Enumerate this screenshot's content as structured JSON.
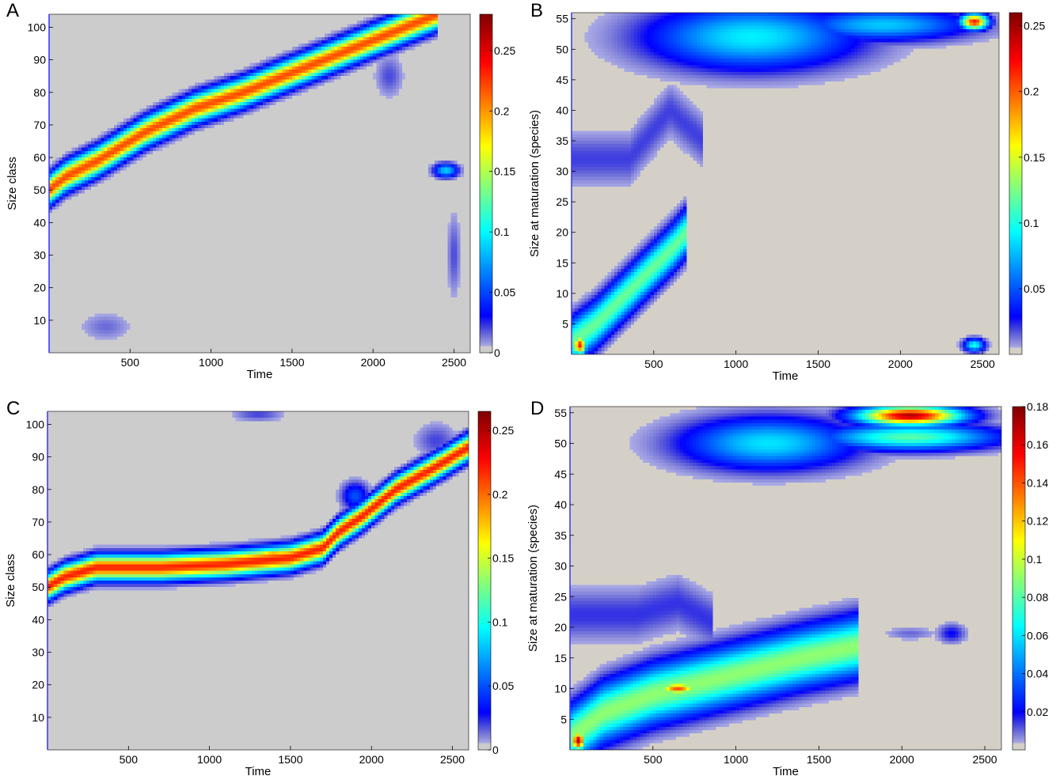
{
  "chart_data": [
    {
      "panel": "A",
      "type": "heatmap",
      "xlabel": "Time",
      "ylabel": "Size class",
      "xticks": [
        500,
        1000,
        1500,
        2000,
        2500
      ],
      "yticks": [
        10,
        20,
        30,
        40,
        50,
        60,
        70,
        80,
        90,
        100
      ],
      "xlim": [
        0,
        2600
      ],
      "ylim": [
        0,
        104
      ],
      "colorbar": {
        "ticks": [
          "0",
          "0.05",
          "0.1",
          "0.15",
          "0.2",
          "0.25"
        ],
        "max": 0.28
      },
      "background": "#cccccc",
      "ridges": [
        {
          "points": [
            [
              0,
              50
            ],
            [
              100,
              54
            ],
            [
              300,
              59
            ],
            [
              600,
              68
            ],
            [
              900,
              75
            ],
            [
              1200,
              80
            ],
            [
              1500,
              86
            ],
            [
              1800,
              92
            ],
            [
              2100,
              98
            ],
            [
              2300,
              102
            ],
            [
              2400,
              104
            ]
          ],
          "peak": 0.22,
          "spread": 4.0
        }
      ],
      "blobs": [
        {
          "x": 2450,
          "y": 56,
          "value": 0.09,
          "sx": 70,
          "sy": 2
        },
        {
          "x": 2500,
          "y": 30,
          "value": 0.02,
          "sx": 40,
          "sy": 12
        },
        {
          "x": 2100,
          "y": 85,
          "value": 0.02,
          "sx": 80,
          "sy": 6
        },
        {
          "x": 350,
          "y": 8,
          "value": 0.015,
          "sx": 150,
          "sy": 4
        }
      ]
    },
    {
      "panel": "B",
      "type": "heatmap",
      "xlabel": "Time",
      "ylabel": "Size at maturation (species)",
      "xticks": [
        500,
        1000,
        1500,
        2000,
        2500
      ],
      "yticks": [
        5,
        10,
        15,
        20,
        25,
        30,
        35,
        40,
        45,
        50,
        55
      ],
      "xlim": [
        0,
        2600
      ],
      "ylim": [
        0,
        56
      ],
      "colorbar": {
        "ticks": [
          "0.05",
          "0.1",
          "0.15",
          "0.2",
          "0.25"
        ],
        "max": 0.26
      },
      "background": "#d4d0c8",
      "ridges": [
        {
          "points": [
            [
              0,
              2
            ],
            [
              150,
              5
            ],
            [
              300,
              9
            ],
            [
              450,
              13
            ],
            [
              600,
              17
            ],
            [
              700,
              20
            ]
          ],
          "peak": 0.12,
          "spread": 3.5
        },
        {
          "points": [
            [
              350,
              32
            ],
            [
              600,
              40
            ],
            [
              800,
              35
            ]
          ],
          "peak": 0.02,
          "spread": 4.0
        }
      ],
      "blobs": [
        {
          "x": 50,
          "y": 1.5,
          "value": 0.22,
          "sx": 40,
          "sy": 1.5
        },
        {
          "x": 1100,
          "y": 52,
          "value": 0.09,
          "sx": 600,
          "sy": 5
        },
        {
          "x": 1900,
          "y": 54,
          "value": 0.08,
          "sx": 500,
          "sy": 2.5
        },
        {
          "x": 2450,
          "y": 54.5,
          "value": 0.22,
          "sx": 80,
          "sy": 1.2
        },
        {
          "x": 2450,
          "y": 1.5,
          "value": 0.1,
          "sx": 60,
          "sy": 1.0
        }
      ]
    },
    {
      "panel": "C",
      "type": "heatmap",
      "xlabel": "Time",
      "ylabel": "Size class",
      "xticks": [
        500,
        1000,
        1500,
        2000,
        2500
      ],
      "yticks": [
        10,
        20,
        30,
        40,
        50,
        60,
        70,
        80,
        90,
        100
      ],
      "xlim": [
        0,
        2600
      ],
      "ylim": [
        0,
        104
      ],
      "colorbar": {
        "ticks": [
          "0",
          "0.05",
          "0.1",
          "0.15",
          "0.2",
          "0.25"
        ],
        "max": 0.265
      },
      "background": "#cccccc",
      "ridges": [
        {
          "points": [
            [
              0,
              50
            ],
            [
              100,
              53
            ],
            [
              300,
              56
            ],
            [
              700,
              56
            ],
            [
              1100,
              57
            ],
            [
              1500,
              59
            ],
            [
              1700,
              62
            ],
            [
              1800,
              67
            ],
            [
              1950,
              72
            ],
            [
              2150,
              80
            ],
            [
              2400,
              87
            ],
            [
              2600,
              93
            ]
          ],
          "peak": 0.22,
          "spread": 3.5
        }
      ],
      "blobs": [
        {
          "x": 1400,
          "y": 60,
          "value": 0.2,
          "sx": 150,
          "sy": 1.5
        },
        {
          "x": 1900,
          "y": 78,
          "value": 0.05,
          "sx": 80,
          "sy": 4
        },
        {
          "x": 1300,
          "y": 103,
          "value": 0.02,
          "sx": 150,
          "sy": 2
        },
        {
          "x": 2400,
          "y": 95,
          "value": 0.02,
          "sx": 120,
          "sy": 5
        }
      ]
    },
    {
      "panel": "D",
      "type": "heatmap",
      "xlabel": "Time",
      "ylabel": "Size at maturation (species)",
      "xticks": [
        500,
        1000,
        1500,
        2000,
        2500
      ],
      "yticks": [
        5,
        10,
        15,
        20,
        25,
        30,
        35,
        40,
        45,
        50,
        55
      ],
      "xlim": [
        0,
        2600
      ],
      "ylim": [
        0,
        56
      ],
      "colorbar": {
        "ticks": [
          "0.02",
          "0.04",
          "0.06",
          "0.08",
          "0.1",
          "0.12",
          "0.14",
          "0.16",
          "0.18"
        ],
        "max": 0.18
      },
      "background": "#d4d0c8",
      "ridges": [
        {
          "points": [
            [
              0,
              2
            ],
            [
              200,
              6
            ],
            [
              500,
              9
            ],
            [
              800,
              11
            ],
            [
              1100,
              13
            ],
            [
              1400,
              15
            ],
            [
              1750,
              17
            ]
          ],
          "peak": 0.09,
          "spread": 4.5
        },
        {
          "points": [
            [
              400,
              22
            ],
            [
              650,
              24
            ],
            [
              850,
              21
            ]
          ],
          "peak": 0.015,
          "spread": 4.0
        }
      ],
      "blobs": [
        {
          "x": 50,
          "y": 1.5,
          "value": 0.17,
          "sx": 40,
          "sy": 1.5
        },
        {
          "x": 650,
          "y": 10,
          "value": 0.14,
          "sx": 120,
          "sy": 1.0
        },
        {
          "x": 1200,
          "y": 50,
          "value": 0.06,
          "sx": 500,
          "sy": 4
        },
        {
          "x": 2050,
          "y": 54.5,
          "value": 0.17,
          "sx": 300,
          "sy": 1.5
        },
        {
          "x": 2050,
          "y": 51,
          "value": 0.08,
          "sx": 500,
          "sy": 2
        },
        {
          "x": 2300,
          "y": 19,
          "value": 0.02,
          "sx": 80,
          "sy": 1.5
        },
        {
          "x": 2050,
          "y": 19,
          "value": 0.01,
          "sx": 150,
          "sy": 1.0
        }
      ]
    }
  ]
}
